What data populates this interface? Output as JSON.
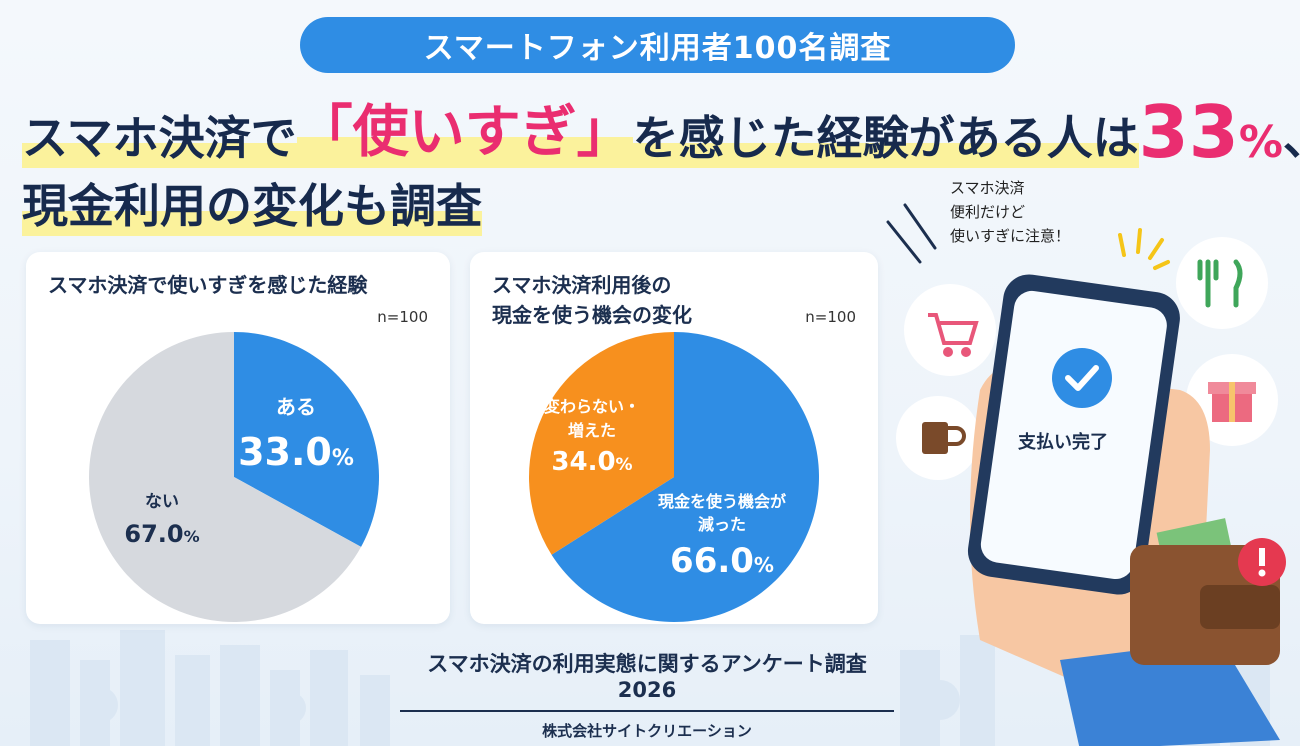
{
  "badge": "スマートフォン利用者100名調査",
  "headline": {
    "part1": "スマホ決済で",
    "highlight": "「使いすぎ」",
    "part2": "を感じた経験がある人は",
    "pct_value": "33",
    "pct_symbol": "%",
    "part3": "、",
    "line2": "現金利用の変化も調査"
  },
  "bubble": {
    "line1": "スマホ決済",
    "line2": "便利だけど",
    "line3": "使いすぎに注意！"
  },
  "phone": {
    "status": "支払い完了"
  },
  "footer": {
    "title": "スマホ決済の利用実態に関するアンケート調査2026",
    "company": "株式会社サイトクリエーション"
  },
  "colors": {
    "blue": "#2f8de4",
    "gray": "#d6d9de",
    "orange": "#f7901e",
    "pink": "#ea2d70"
  },
  "chart_data": [
    {
      "type": "pie",
      "title": "スマホ決済で使いすぎを感じた経験",
      "n": "n=100",
      "slices": [
        {
          "label": "ある",
          "value": 33.0,
          "display": "33.0",
          "color": "#2f8de4"
        },
        {
          "label": "ない",
          "value": 67.0,
          "display": "67.0",
          "color": "#d6d9de"
        }
      ]
    },
    {
      "type": "pie",
      "title_line1": "スマホ決済利用後の",
      "title_line2": "現金を使う機会の変化",
      "n": "n=100",
      "slices": [
        {
          "label_line1": "現金を使う機会が",
          "label_line2": "減った",
          "value": 66.0,
          "display": "66.0",
          "color": "#2f8de4"
        },
        {
          "label_line1": "変わらない・",
          "label_line2": "増えた",
          "value": 34.0,
          "display": "34.0",
          "color": "#f7901e"
        }
      ]
    }
  ]
}
